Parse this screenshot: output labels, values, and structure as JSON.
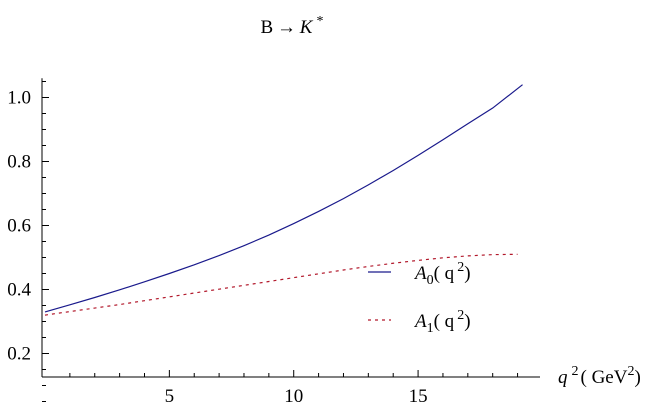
{
  "chart_data": {
    "type": "line",
    "title": {
      "base": "B → ",
      "italic": "K",
      "sup": "*"
    },
    "xlabel": {
      "var": "q",
      "exp": "2",
      "unit": "( GeV",
      "unit_exp": "2",
      "close": ")"
    },
    "ylabel": "",
    "xlim": [
      0,
      19.5
    ],
    "ylim": [
      0.0,
      1.06
    ],
    "x_major_ticks": [
      5,
      10,
      15
    ],
    "x_major_labels": [
      "5",
      "10",
      "15"
    ],
    "y_major_ticks": [
      0.2,
      0.4,
      0.6,
      0.8,
      1.0
    ],
    "y_major_labels": [
      "0.2",
      "0.4",
      "0.6",
      "0.8",
      "1.0"
    ],
    "grid": false,
    "legend_position": "right",
    "series": [
      {
        "name_main": "A",
        "name_sub": "0",
        "name_arg": "( q",
        "name_arg_exp": "2",
        "name_close": ")",
        "color": "#1a1a8c",
        "style": "solid",
        "x": [
          0,
          1,
          2,
          3,
          4,
          5,
          6,
          7,
          8,
          9,
          10,
          11,
          12,
          13,
          14,
          15,
          16,
          17,
          18,
          19.2
        ],
        "y": [
          0.33,
          0.352,
          0.375,
          0.399,
          0.424,
          0.45,
          0.477,
          0.506,
          0.537,
          0.57,
          0.606,
          0.644,
          0.684,
          0.727,
          0.772,
          0.819,
          0.868,
          0.918,
          0.967,
          1.04
        ]
      },
      {
        "name_main": "A",
        "name_sub": "1",
        "name_arg": "( q",
        "name_arg_exp": "2",
        "name_close": ")",
        "color": "#b2182b",
        "style": "dashed",
        "x": [
          0,
          1,
          2,
          3,
          4,
          5,
          6,
          7,
          8,
          9,
          10,
          11,
          12,
          13,
          14,
          15,
          16,
          17,
          18,
          19.0
        ],
        "y": [
          0.32,
          0.331,
          0.342,
          0.353,
          0.365,
          0.377,
          0.389,
          0.401,
          0.413,
          0.425,
          0.437,
          0.449,
          0.461,
          0.472,
          0.482,
          0.491,
          0.499,
          0.505,
          0.509,
          0.51
        ]
      }
    ]
  }
}
